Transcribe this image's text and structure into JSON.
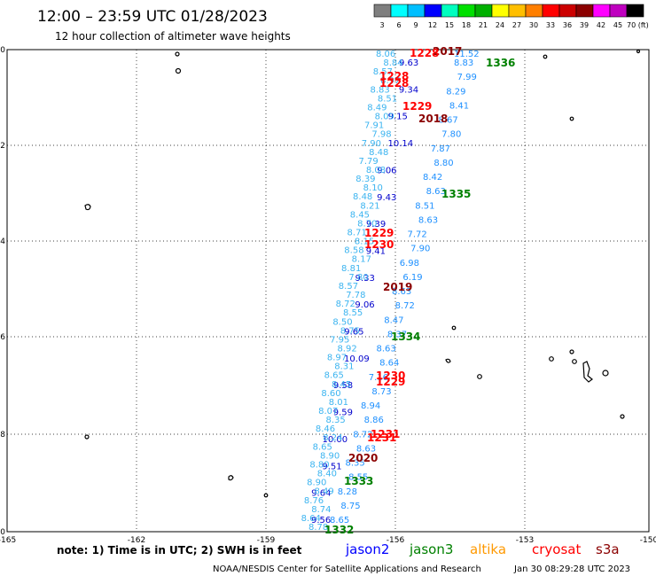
{
  "title": "12:00 – 23:59 UTC 01/28/2023",
  "subtitle": "12 hour collection of altimeter wave heights",
  "colorbar": {
    "labels": [
      "3",
      "6",
      "9",
      "12",
      "15",
      "18",
      "21",
      "24",
      "27",
      "30",
      "33",
      "36",
      "39",
      "42",
      "45",
      "70 (ft)"
    ],
    "colors": [
      "#7f7f7f",
      "#00ffff",
      "#00bfff",
      "#0000ff",
      "#00ffbf",
      "#00e000",
      "#00b000",
      "#ffff00",
      "#ffbf00",
      "#ff7f00",
      "#ff0000",
      "#cc0000",
      "#8b0000",
      "#ff00ff",
      "#bf00bf",
      "#000000"
    ]
  },
  "axes": {
    "lon_labels": [
      "-165",
      "-162",
      "-159",
      "-156",
      "-153",
      "-150"
    ],
    "lat_labels": [
      "-10",
      "-12",
      "-14",
      "-16",
      "-18",
      "-20"
    ]
  },
  "time_labels": [
    {
      "text": "1336",
      "color": "#008000"
    },
    {
      "text": "1335",
      "color": "#008000"
    },
    {
      "text": "1334",
      "color": "#008000"
    },
    {
      "text": "1333",
      "color": "#008000"
    },
    {
      "text": "1332",
      "color": "#008000"
    },
    {
      "text": "2017",
      "color": "#8b0000"
    },
    {
      "text": "2018",
      "color": "#8b0000"
    },
    {
      "text": "2019",
      "color": "#8b0000"
    },
    {
      "text": "2020",
      "color": "#8b0000"
    },
    {
      "text": "1228",
      "color": "#ff0000"
    },
    {
      "text": "1229",
      "color": "#ff0000"
    },
    {
      "text": "1230",
      "color": "#ff0000"
    },
    {
      "text": "1231",
      "color": "#ff0000"
    }
  ],
  "tracks": [
    {
      "name": "jason2",
      "color": "#0000cc",
      "values": [
        "9.63",
        "9.34",
        "9.15",
        "10.14",
        "9.06",
        "9.43",
        "9.39",
        "9.41",
        "9.33",
        "9.06",
        "9.65",
        "10.09",
        "9.58",
        "9.59",
        "10.00",
        "9.51",
        "9.64",
        "9.56"
      ]
    },
    {
      "name": "jason3",
      "color": "#1e90ff",
      "values": [
        "8.83",
        "7.99",
        "8.29",
        "8.41",
        "8.67",
        "7.80",
        "7.87",
        "8.80",
        "8.42",
        "8.63",
        "8.51",
        "8.63",
        "7.72",
        "7.90",
        "6.98",
        "6.19",
        "8.63",
        "8.72",
        "8.47",
        "8.37",
        "8.63",
        "8.64",
        "7.16",
        "8.73",
        "8.94",
        "8.86",
        "8.72",
        "8.63",
        "8.35",
        "8.55",
        "8.28",
        "8.75",
        "8.65"
      ]
    },
    {
      "name": "cryosat",
      "color": "#3cb4f0",
      "values": [
        "8.06",
        "8.84",
        "8.57",
        "8.97",
        "8.83",
        "8.51",
        "8.49",
        "8.09",
        "7.91",
        "7.98",
        "7.90",
        "8.48",
        "7.79",
        "8.08",
        "8.39",
        "8.10",
        "8.48",
        "8.21",
        "8.45",
        "8.70",
        "8.71",
        "8.15",
        "8.58",
        "8.17",
        "8.81",
        "7.80",
        "8.57",
        "7.78",
        "8.72",
        "8.55",
        "8.50",
        "8.75",
        "7.95",
        "8.92",
        "8.97",
        "8.31",
        "8.65",
        "8.45",
        "8.60",
        "8.01",
        "8.07",
        "8.35",
        "8.46",
        "8.24",
        "8.65",
        "8.90",
        "8.80",
        "8.40",
        "8.90",
        "8.49",
        "8.76",
        "8.74",
        "8.64",
        "8.78"
      ]
    },
    {
      "name": "saral",
      "color": "#1e90ff",
      "values": [
        "11.52"
      ]
    }
  ],
  "legend": {
    "note": "note:  1) Time is in UTC; 2) SWH is in feet",
    "sats": [
      {
        "name": "jason2",
        "color": "#0000ff"
      },
      {
        "name": "jason3",
        "color": "#008000"
      },
      {
        "name": "altika",
        "color": "#ff9900"
      },
      {
        "name": "cryosat",
        "color": "#ff0000"
      },
      {
        "name": "s3a",
        "color": "#8b0000"
      }
    ]
  },
  "credit": "NOAA/NESDIS Center for Satellite Applications and Research",
  "timestamp": "Jan 30 08:29:28 UTC 2023"
}
